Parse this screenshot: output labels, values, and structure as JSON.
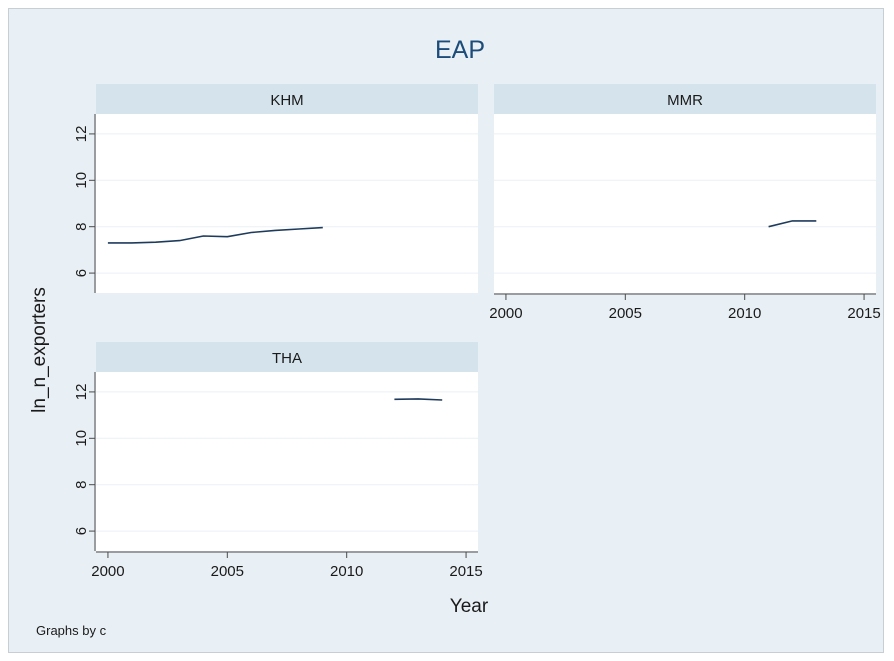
{
  "chart_data": {
    "type": "line",
    "title": "EAP",
    "xlabel": "Year",
    "ylabel": "ln_n_exporters",
    "note": "Graphs by c",
    "x_ticks": [
      2000,
      2005,
      2010,
      2015
    ],
    "y_ticks": [
      6,
      8,
      10,
      12
    ],
    "xlim": [
      1999.5,
      2015.5
    ],
    "ylim": [
      5.4,
      12.6
    ],
    "grid": true,
    "colors": {
      "line": "#1f3b5c",
      "strip": "#d5e4ec",
      "panel": "#ffffff",
      "grid": "#eaf0f4",
      "title": "#1c4c7a",
      "background": "#e9f0f5"
    },
    "panels": [
      {
        "label": "KHM",
        "x": [
          2000,
          2001,
          2002,
          2003,
          2004,
          2005,
          2006,
          2007,
          2008,
          2009
        ],
        "y": [
          7.3,
          7.3,
          7.33,
          7.4,
          7.6,
          7.57,
          7.75,
          7.84,
          7.9,
          7.96
        ]
      },
      {
        "label": "MMR",
        "x": [
          2011,
          2012,
          2013
        ],
        "y": [
          8.0,
          8.25,
          8.25
        ]
      },
      {
        "label": "THA",
        "x": [
          2012,
          2013,
          2014
        ],
        "y": [
          11.68,
          11.7,
          11.65
        ]
      }
    ]
  }
}
